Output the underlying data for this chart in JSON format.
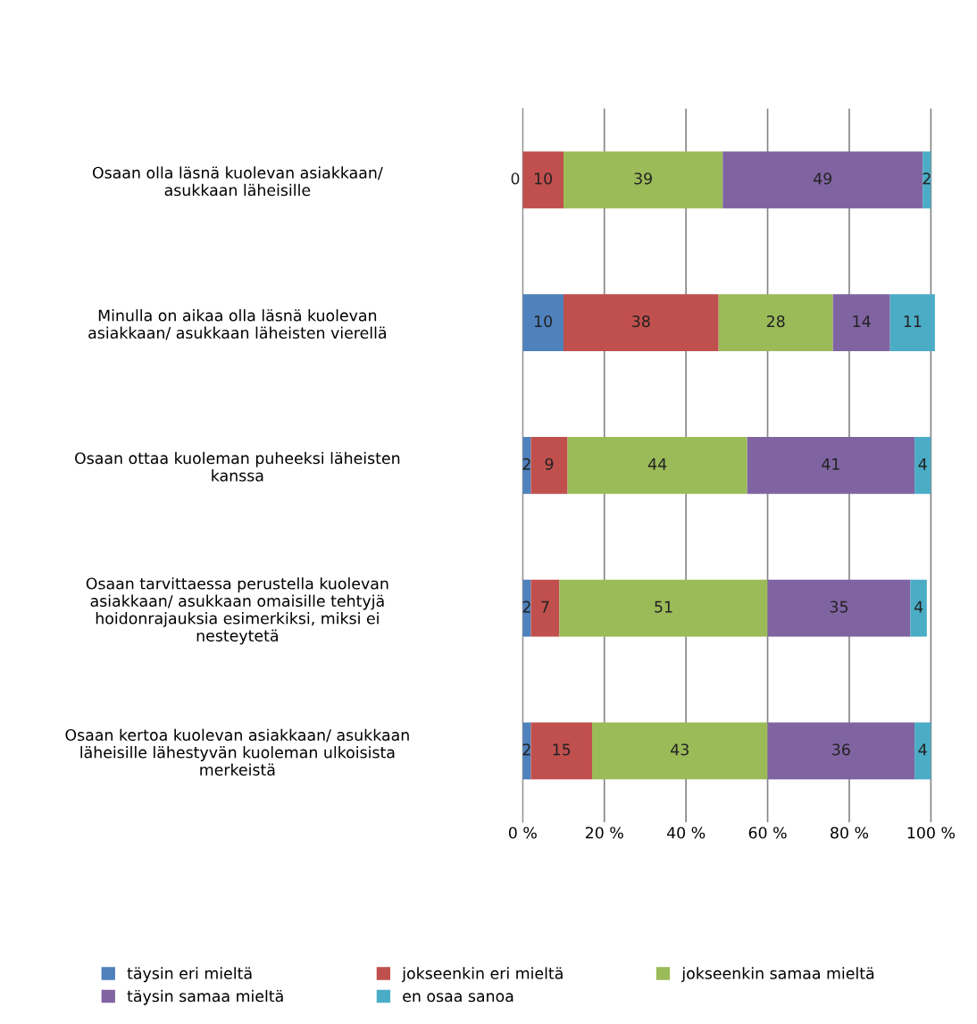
{
  "chart_data": {
    "type": "bar",
    "orientation": "horizontal",
    "stacked": true,
    "data_labels": true,
    "grid": "x",
    "legend": "bottom",
    "categories": [
      "Osaan olla läsnä kuolevan asiakkaan/\nasukkaan läheisille",
      "Minulla on aikaa olla läsnä kuolevan\nasiakkaan/ asukkaan läheisten vierellä",
      "Osaan ottaa kuoleman puheeksi läheisten\nkanssa",
      "Osaan tarvittaessa perustella kuolevan\nasiakkaan/ asukkaan omaisille tehtyjä\nhoidonrajauksia esimerkiksi, miksi ei\nnesteytetä",
      "Osaan kertoa kuolevan asiakkaan/ asukkaan\nläheisille lähestyvän kuoleman ulkoisista\nmerkeistä"
    ],
    "series": [
      {
        "name": "täysin eri mieltä",
        "color": "#4f81bd",
        "values": [
          0,
          10,
          2,
          2,
          2
        ],
        "value_labels": [
          null,
          "10",
          "2",
          "2",
          "2"
        ]
      },
      {
        "name": "jokseenkin eri mieltä",
        "color": "#c0504d",
        "values": [
          10,
          38,
          9,
          7,
          15
        ]
      },
      {
        "name": "jokseenkin samaa mieltä",
        "color": "#9bbb59",
        "values": [
          39,
          28,
          44,
          51,
          43
        ]
      },
      {
        "name": "täysin samaa mieltä",
        "color": "#8064a2",
        "values": [
          49,
          14,
          41,
          35,
          36
        ]
      },
      {
        "name": "en osaa sanoa",
        "color": "#4bacc6",
        "values": [
          2,
          11,
          4,
          4,
          4
        ]
      }
    ],
    "annotations": [
      {
        "text": "0",
        "x": 0,
        "y": "Osaan olla läsnä kuolevan asiakkaan/\nasukkaan läheisille"
      }
    ],
    "xlim": [
      0,
      101
    ],
    "xticks": [
      {
        "value": 0,
        "label": "0 %"
      },
      {
        "value": 20,
        "label": "20 %"
      },
      {
        "value": 40,
        "label": "40 %"
      },
      {
        "value": 60,
        "label": "60 %"
      },
      {
        "value": 80,
        "label": "80 %"
      },
      {
        "value": 100,
        "label": "100 %"
      }
    ]
  }
}
